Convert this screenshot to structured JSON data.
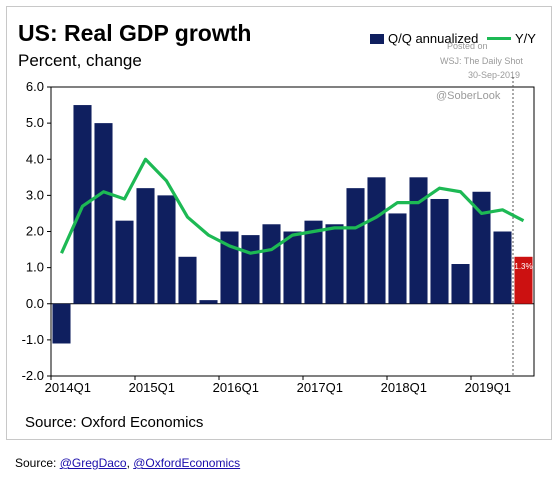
{
  "header": {
    "title": "US: Real GDP growth",
    "subtitle": "Percent, change"
  },
  "legend": {
    "bar_label": "Q/Q annualized",
    "line_label": "Y/Y"
  },
  "watermark": {
    "line1": "Posted on",
    "line2": "WSJ: The Daily Shot",
    "line3": "30-Sep-2019",
    "handle": "@SoberLook"
  },
  "source": "Source: Oxford Economics",
  "credit": {
    "prefix": "Source: ",
    "link1": "@GregDaco",
    "sep": ", ",
    "link2": "@OxfordEconomics"
  },
  "colors": {
    "bar": "#0f1f5f",
    "forecast_bar": "#cc1111",
    "line": "#1db954",
    "divider": "#555555"
  },
  "chart_data": {
    "type": "bar",
    "title": "US: Real GDP growth",
    "subtitle": "Percent, change",
    "ylim": [
      -2.0,
      6.0
    ],
    "yticks": [
      "6.0",
      "5.0",
      "4.0",
      "3.0",
      "2.0",
      "1.0",
      "0.0",
      "-1.0",
      "-2.0"
    ],
    "ytick_values": [
      6,
      5,
      4,
      3,
      2,
      1,
      0,
      -1,
      -2
    ],
    "xtick_labels": [
      "2014Q1",
      "2015Q1",
      "2016Q1",
      "2017Q1",
      "2018Q1",
      "2019Q1"
    ],
    "xtick_indices": [
      0,
      4,
      8,
      12,
      16,
      20
    ],
    "categories": [
      "2014Q1",
      "2014Q2",
      "2014Q3",
      "2014Q4",
      "2015Q1",
      "2015Q2",
      "2015Q3",
      "2015Q4",
      "2016Q1",
      "2016Q2",
      "2016Q3",
      "2016Q4",
      "2017Q1",
      "2017Q2",
      "2017Q3",
      "2017Q4",
      "2018Q1",
      "2018Q2",
      "2018Q3",
      "2018Q4",
      "2019Q1",
      "2019Q2",
      "2019Q3"
    ],
    "series": [
      {
        "name": "Q/Q annualized",
        "type": "bar",
        "values": [
          -1.1,
          5.5,
          5.0,
          2.3,
          3.2,
          3.0,
          1.3,
          0.1,
          2.0,
          1.9,
          2.2,
          2.0,
          2.3,
          2.2,
          3.2,
          3.5,
          2.5,
          3.5,
          2.9,
          1.1,
          3.1,
          2.0,
          1.3
        ]
      },
      {
        "name": "Y/Y",
        "type": "line",
        "values": [
          1.4,
          2.7,
          3.1,
          2.9,
          4.0,
          3.4,
          2.4,
          1.9,
          1.6,
          1.4,
          1.5,
          1.9,
          2.0,
          2.1,
          2.1,
          2.4,
          2.8,
          2.8,
          3.2,
          3.1,
          2.5,
          2.6,
          2.3
        ]
      }
    ],
    "forecast_index": 22,
    "forecast_label": "1.3%",
    "divider_after_index": 21
  }
}
